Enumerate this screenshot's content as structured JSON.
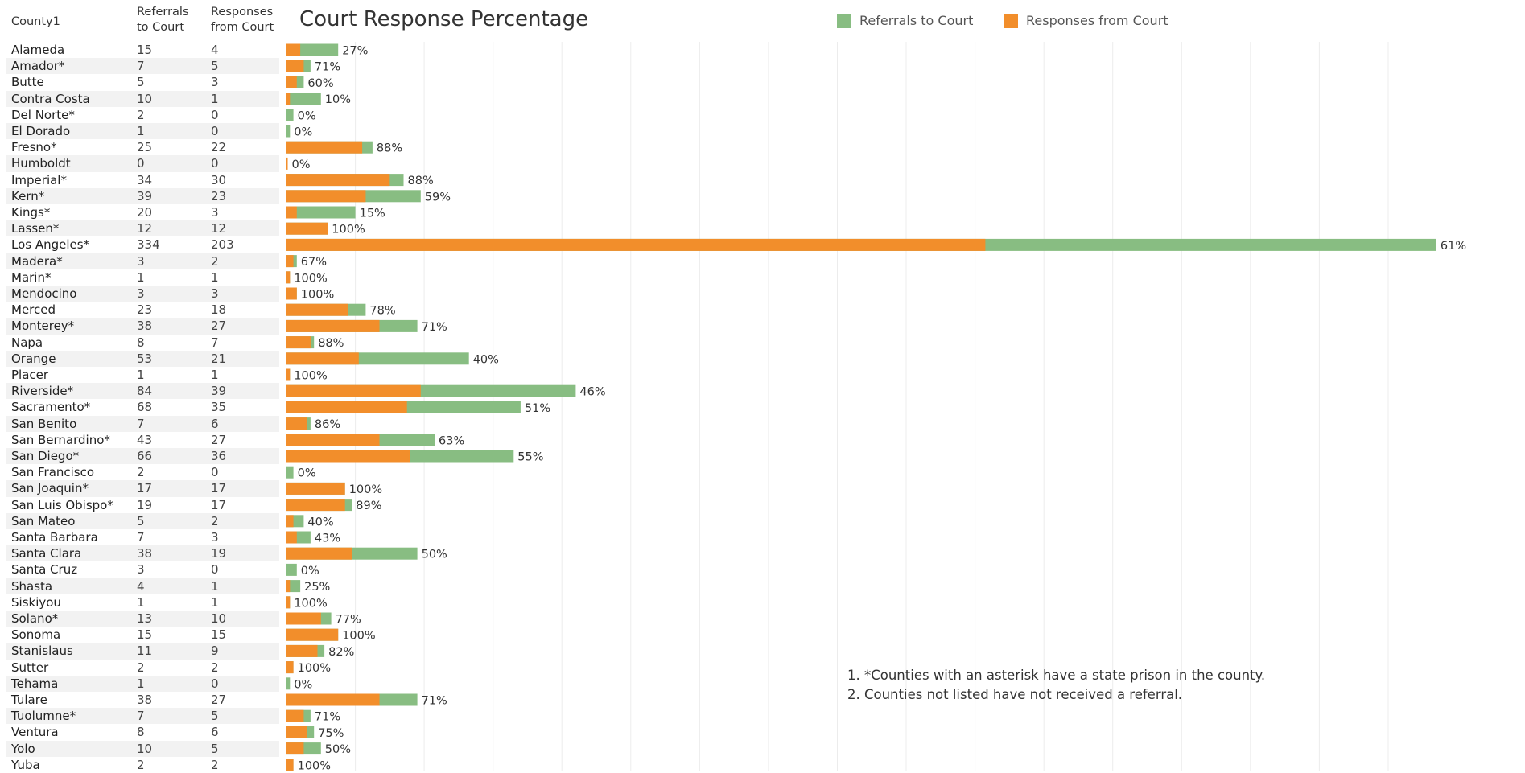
{
  "headers": {
    "county": "County1",
    "referrals": [
      "Referrals",
      "to Court"
    ],
    "responses": [
      "Responses",
      "from Court"
    ]
  },
  "chart_data": {
    "type": "bar",
    "title": "Court Response Percentage",
    "series": [
      {
        "name": "Referrals to Court",
        "color": "#88bd82"
      },
      {
        "name": "Responses from Court",
        "color": "#f28e2b"
      }
    ],
    "categories": [
      "Alameda",
      "Amador*",
      "Butte",
      "Contra Costa",
      "Del Norte*",
      "El Dorado",
      "Fresno*",
      "Humboldt",
      "Imperial*",
      "Kern*",
      "Kings*",
      "Lassen*",
      "Los Angeles*",
      "Madera*",
      "Marin*",
      "Mendocino",
      "Merced",
      "Monterey*",
      "Napa",
      "Orange",
      "Placer",
      "Riverside*",
      "Sacramento*",
      "San Benito",
      "San Bernardino*",
      "San Diego*",
      "San Francisco",
      "San Joaquin*",
      "San Luis Obispo*",
      "San Mateo",
      "Santa Barbara",
      "Santa Clara",
      "Santa Cruz",
      "Shasta",
      "Siskiyou",
      "Solano*",
      "Sonoma",
      "Stanislaus",
      "Sutter",
      "Tehama",
      "Tulare",
      "Tuolumne*",
      "Ventura",
      "Yolo",
      "Yuba"
    ],
    "referrals": [
      15,
      7,
      5,
      10,
      2,
      1,
      25,
      0,
      34,
      39,
      20,
      12,
      334,
      3,
      1,
      3,
      23,
      38,
      8,
      53,
      1,
      84,
      68,
      7,
      43,
      66,
      2,
      17,
      19,
      5,
      7,
      38,
      3,
      4,
      1,
      13,
      15,
      11,
      2,
      1,
      38,
      7,
      8,
      10,
      2
    ],
    "responses": [
      4,
      5,
      3,
      1,
      0,
      0,
      22,
      0,
      30,
      23,
      3,
      12,
      203,
      2,
      1,
      3,
      18,
      27,
      7,
      21,
      1,
      39,
      35,
      6,
      27,
      36,
      0,
      17,
      17,
      2,
      3,
      19,
      0,
      1,
      1,
      10,
      15,
      9,
      2,
      0,
      27,
      5,
      6,
      5,
      2
    ],
    "percent_labels": [
      "27%",
      "71%",
      "60%",
      "10%",
      "0%",
      "0%",
      "88%",
      "0%",
      "88%",
      "59%",
      "15%",
      "100%",
      "61%",
      "67%",
      "100%",
      "100%",
      "78%",
      "71%",
      "88%",
      "40%",
      "100%",
      "46%",
      "51%",
      "86%",
      "63%",
      "55%",
      "0%",
      "100%",
      "89%",
      "40%",
      "43%",
      "50%",
      "0%",
      "25%",
      "100%",
      "77%",
      "100%",
      "82%",
      "100%",
      "0%",
      "71%",
      "71%",
      "75%",
      "50%",
      "100%"
    ],
    "xlim": [
      0,
      340
    ],
    "grid": true
  },
  "notes": [
    "1. *Counties with an asterisk have a state prison in the county.",
    "2. Counties not listed have not received a referral."
  ]
}
